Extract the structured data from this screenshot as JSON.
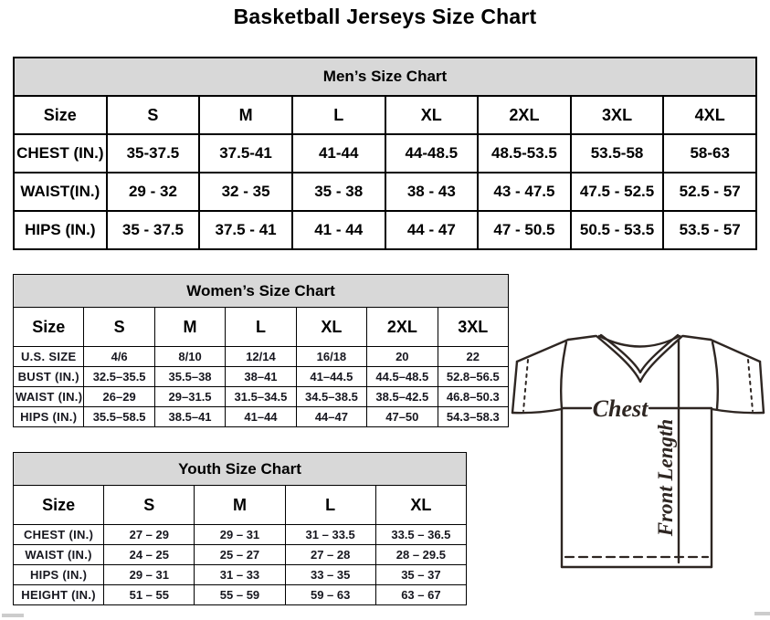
{
  "page_title": "Basketball Jerseys Size Chart",
  "colors": {
    "table_header_bg": "#d8d8d8",
    "table_border": "#000000",
    "diagram_line": "#2e2622"
  },
  "tables": {
    "men": {
      "title": "Men’s Size Chart",
      "size_label": "Size",
      "sizes": [
        "S",
        "M",
        "L",
        "XL",
        "2XL",
        "3XL",
        "4XL"
      ],
      "rows": [
        {
          "label": "CHEST (IN.)",
          "values": [
            "35-37.5",
            "37.5-41",
            "41-44",
            "44-48.5",
            "48.5-53.5",
            "53.5-58",
            "58-63"
          ]
        },
        {
          "label": "WAIST(IN.)",
          "values": [
            "29 - 32",
            "32 - 35",
            "35 - 38",
            "38 - 43",
            "43 - 47.5",
            "47.5 - 52.5",
            "52.5 - 57"
          ]
        },
        {
          "label": "HIPS (IN.)",
          "values": [
            "35 - 37.5",
            "37.5 - 41",
            "41 - 44",
            "44 - 47",
            "47 - 50.5",
            "50.5 - 53.5",
            "53.5 - 57"
          ]
        }
      ]
    },
    "women": {
      "title": "Women’s Size Chart",
      "size_label": "Size",
      "sizes": [
        "S",
        "M",
        "L",
        "XL",
        "2XL",
        "3XL"
      ],
      "rows": [
        {
          "label": "U.S. SIZE",
          "values": [
            "4/6",
            "8/10",
            "12/14",
            "16/18",
            "20",
            "22"
          ]
        },
        {
          "label": "BUST (IN.)",
          "values": [
            "32.5–35.5",
            "35.5–38",
            "38–41",
            "41–44.5",
            "44.5–48.5",
            "52.8–56.5"
          ]
        },
        {
          "label": "WAIST (IN.)",
          "values": [
            "26–29",
            "29–31.5",
            "31.5–34.5",
            "34.5–38.5",
            "38.5–42.5",
            "46.8–50.3"
          ]
        },
        {
          "label": "HIPS (IN.)",
          "values": [
            "35.5–58.5",
            "38.5–41",
            "41–44",
            "44–47",
            "47–50",
            "54.3–58.3"
          ]
        }
      ]
    },
    "youth": {
      "title": "Youth Size Chart",
      "size_label": "Size",
      "sizes": [
        "S",
        "M",
        "L",
        "XL"
      ],
      "rows": [
        {
          "label": "CHEST (IN.)",
          "values": [
            "27 – 29",
            "29 – 31",
            "31 – 33.5",
            "33.5 – 36.5"
          ]
        },
        {
          "label": "WAIST (IN.)",
          "values": [
            "24 – 25",
            "25 – 27",
            "27 – 28",
            "28 – 29.5"
          ]
        },
        {
          "label": "HIPS (IN.)",
          "values": [
            "29 – 31",
            "31 – 33",
            "33 – 35",
            "35 – 37"
          ]
        },
        {
          "label": "HEIGHT (IN.)",
          "values": [
            "51 – 55",
            "55 – 59",
            "59 – 63",
            "63 – 67"
          ]
        }
      ]
    }
  },
  "diagram": {
    "chest_label": "Chest",
    "front_length_label": "Front Length"
  }
}
